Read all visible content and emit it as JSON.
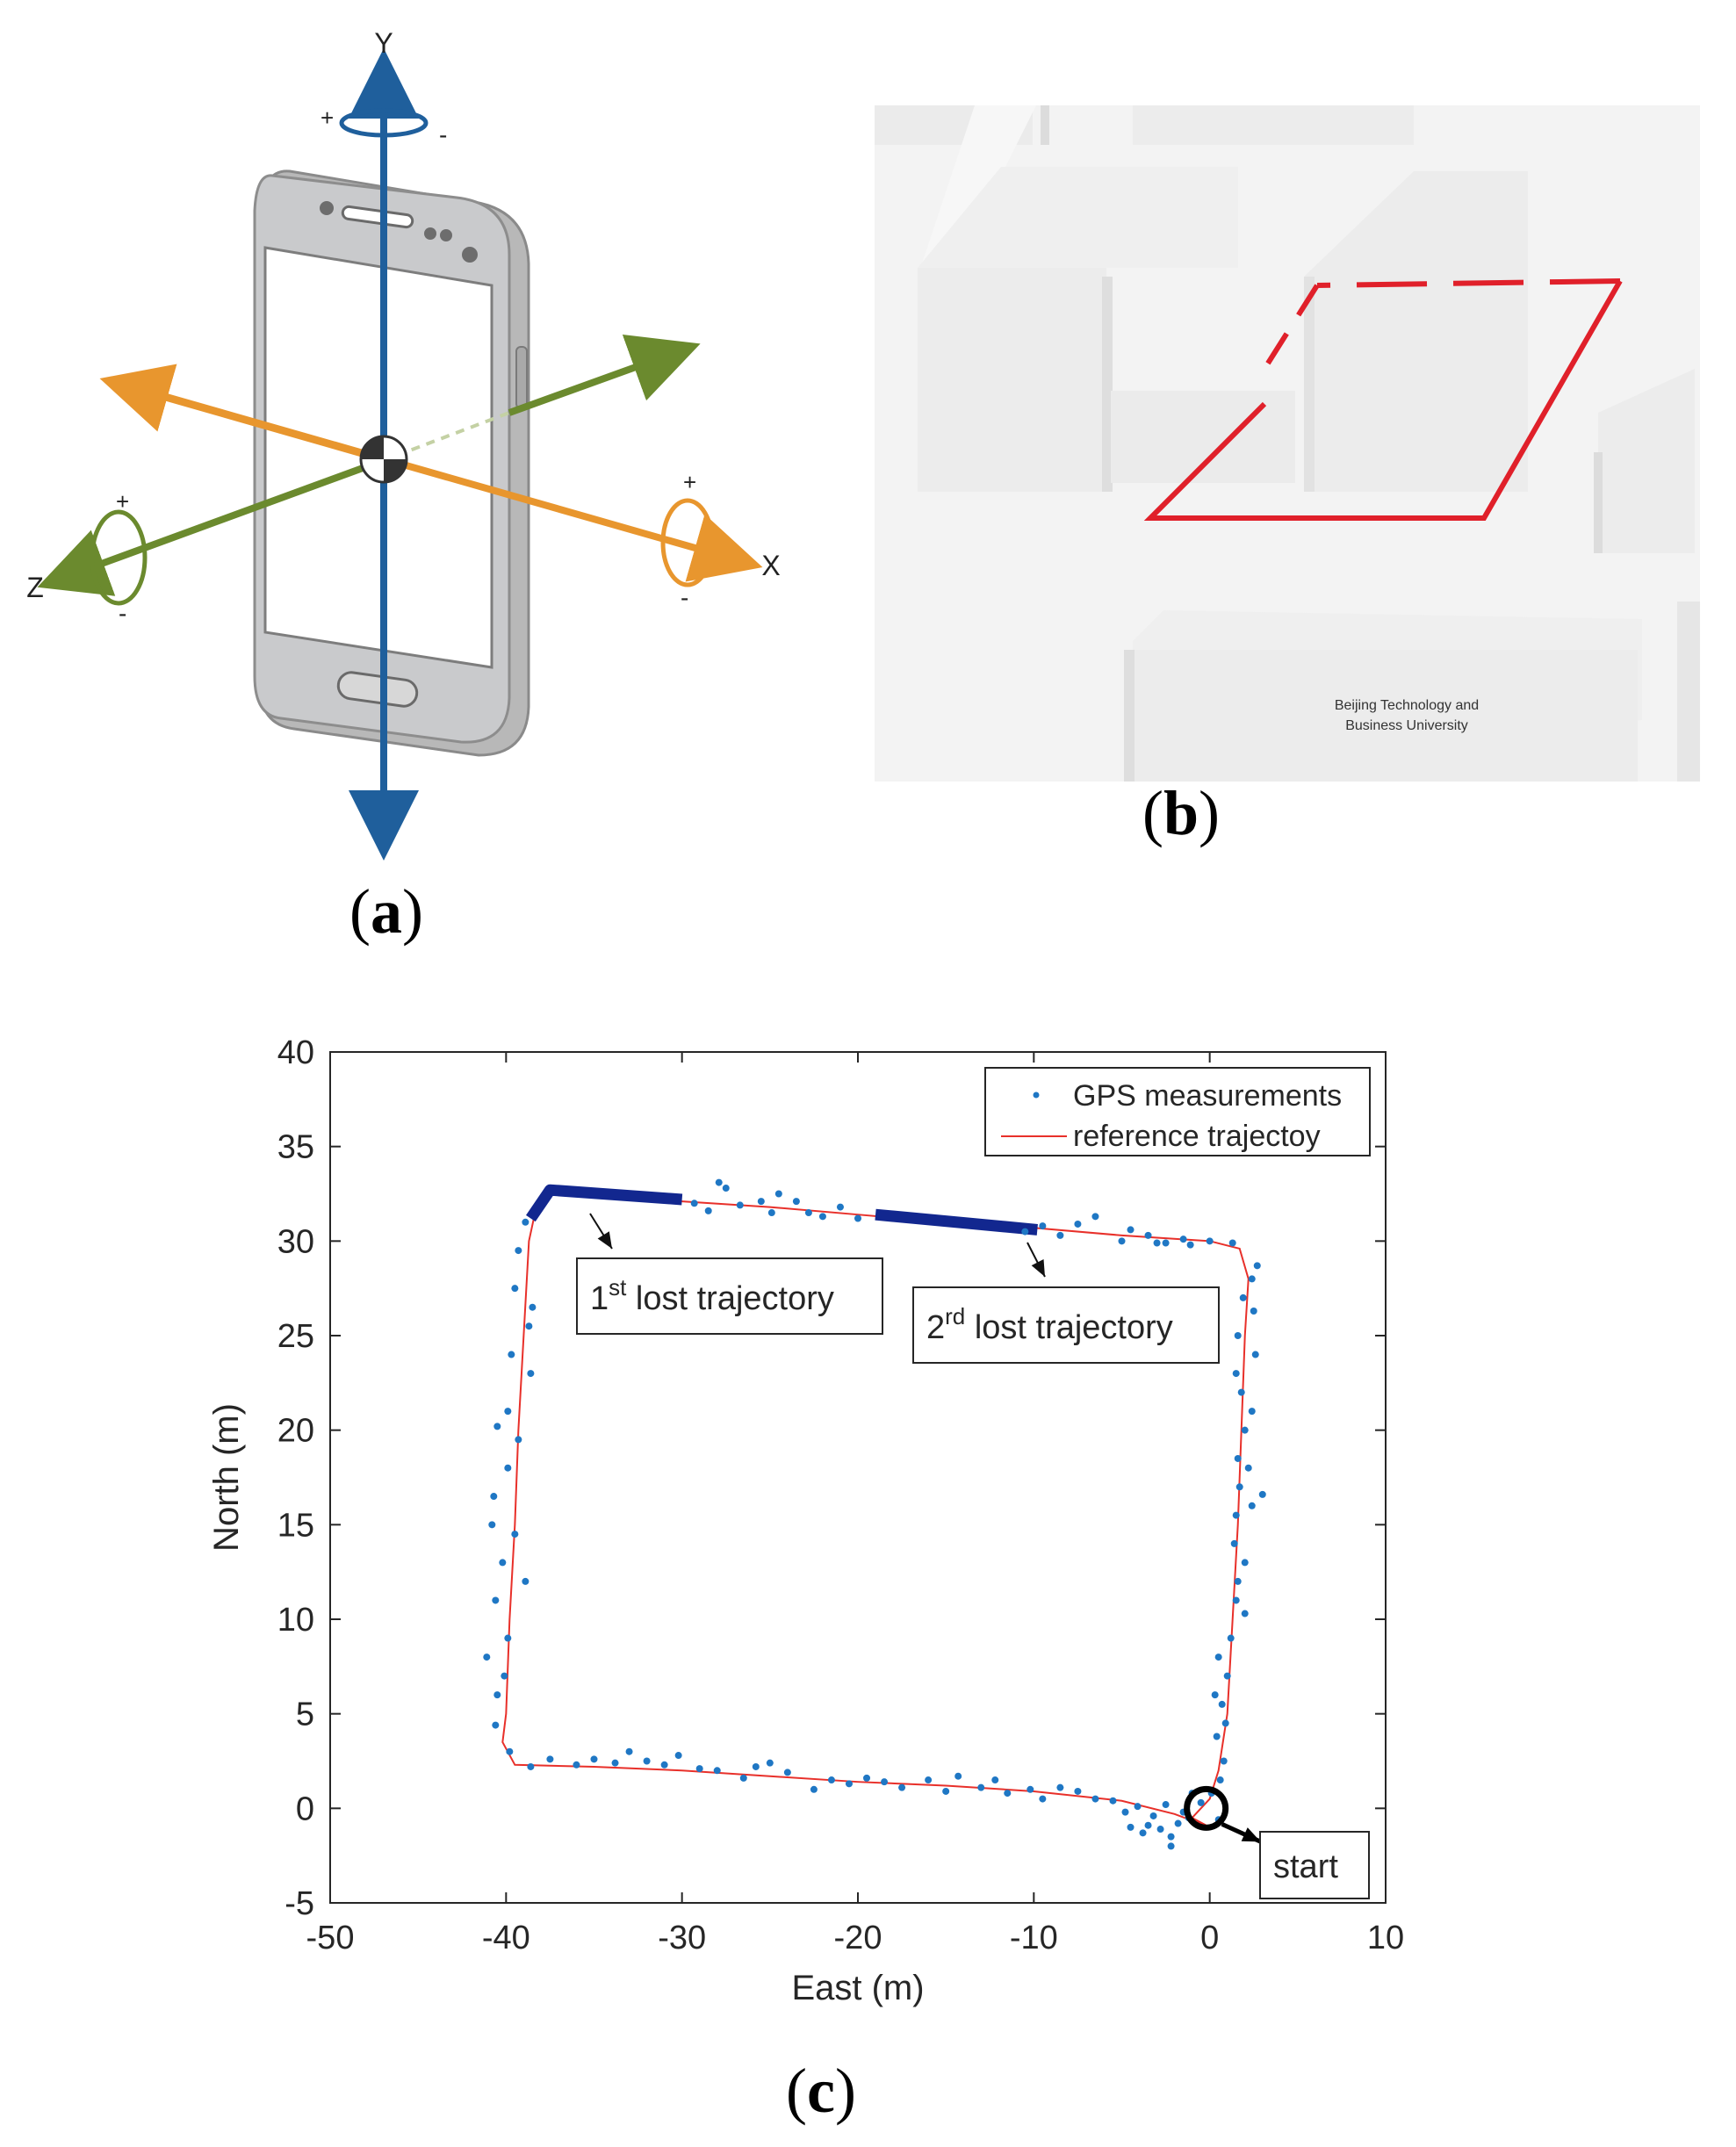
{
  "panel_a": {
    "caption_letter": "a",
    "axes": {
      "y": "Y",
      "x": "X",
      "z": "Z"
    },
    "rotation_signs": {
      "plus": "+",
      "minus": "-"
    },
    "colors": {
      "y_axis": "#1f5f9c",
      "x_axis": "#e8962e",
      "z_axis": "#6b8a2e"
    }
  },
  "panel_b": {
    "caption_letter": "b",
    "building_label_line1": "Beijing Technology and",
    "building_label_line2": "Business University",
    "colors": {
      "route": "#e0202a",
      "ground": "#f3f3f3",
      "building": "#e8e8e8"
    }
  },
  "panel_c": {
    "caption_letter": "c",
    "chart_data": {
      "type": "scatter",
      "xlabel": "East (m)",
      "ylabel": "North (m)",
      "xlim": [
        -50,
        10
      ],
      "ylim": [
        -5,
        40
      ],
      "xticks": [
        -50,
        -40,
        -30,
        -20,
        -10,
        0,
        10
      ],
      "yticks": [
        -5,
        0,
        5,
        10,
        15,
        20,
        25,
        30,
        35,
        40
      ],
      "legend_position": "top-right",
      "series": [
        {
          "name": "GPS measurements",
          "kind": "points",
          "color": "#1f77c4"
        },
        {
          "name": "reference trajectoy",
          "kind": "line",
          "color": "#e8302a",
          "points": [
            [
              0,
              -1
            ],
            [
              -2,
              -0.3
            ],
            [
              -5,
              0.4
            ],
            [
              -10,
              0.9
            ],
            [
              -15,
              1.2
            ],
            [
              -20,
              1.4
            ],
            [
              -25,
              1.7
            ],
            [
              -30,
              2.0
            ],
            [
              -35,
              2.2
            ],
            [
              -39.5,
              2.3
            ],
            [
              -40.2,
              3.5
            ],
            [
              -40,
              5
            ],
            [
              -39.8,
              10
            ],
            [
              -39.5,
              15
            ],
            [
              -39.3,
              20
            ],
            [
              -39,
              25
            ],
            [
              -38.7,
              30
            ],
            [
              -38.4,
              31.3
            ],
            [
              -37.5,
              32.6
            ],
            [
              -35,
              32.4
            ],
            [
              -30,
              32.1
            ],
            [
              -25,
              31.8
            ],
            [
              -20,
              31.4
            ],
            [
              -15,
              31.0
            ],
            [
              -10,
              30.7
            ],
            [
              -5,
              30.3
            ],
            [
              0,
              30
            ],
            [
              1.7,
              29.6
            ],
            [
              2.2,
              28
            ],
            [
              2,
              25
            ],
            [
              1.8,
              20
            ],
            [
              1.6,
              15
            ],
            [
              1.3,
              10
            ],
            [
              1,
              5
            ],
            [
              0.5,
              2
            ],
            [
              0,
              0.5
            ],
            [
              -0.5,
              0
            ],
            [
              -1,
              -0.5
            ],
            [
              0,
              -1
            ]
          ]
        },
        {
          "name": "",
          "kind": "lost",
          "color": "#12278f",
          "segments": [
            [
              [
                -38.6,
                31.2
              ],
              [
                -37.5,
                32.7
              ],
              [
                -30,
                32.2
              ]
            ],
            [
              [
                -19,
                31.4
              ],
              [
                -9.8,
                30.6
              ]
            ]
          ]
        }
      ],
      "gps_points": [
        [
          -38.9,
          31
        ],
        [
          -39.3,
          29.5
        ],
        [
          -39.5,
          27.5
        ],
        [
          -38.5,
          26.5
        ],
        [
          -38.7,
          25.5
        ],
        [
          -39.7,
          24
        ],
        [
          -38.6,
          23
        ],
        [
          -39.9,
          21
        ],
        [
          -39.3,
          19.5
        ],
        [
          -40.5,
          20.2
        ],
        [
          -39.9,
          18
        ],
        [
          -40.7,
          16.5
        ],
        [
          -39.5,
          14.5
        ],
        [
          -40.2,
          13
        ],
        [
          -40.8,
          15
        ],
        [
          -38.9,
          12
        ],
        [
          -40.6,
          11
        ],
        [
          -39.9,
          9
        ],
        [
          -40.1,
          7
        ],
        [
          -41.1,
          8
        ],
        [
          -40.5,
          6
        ],
        [
          -40.6,
          4.4
        ],
        [
          -39.8,
          3
        ],
        [
          -38.6,
          2.2
        ],
        [
          -37.5,
          2.6
        ],
        [
          -36,
          2.3
        ],
        [
          -35,
          2.6
        ],
        [
          -33.8,
          2.4
        ],
        [
          -33,
          3.0
        ],
        [
          -32,
          2.5
        ],
        [
          -31,
          2.3
        ],
        [
          -30.2,
          2.8
        ],
        [
          -29,
          2.1
        ],
        [
          -28,
          2.0
        ],
        [
          -26.5,
          1.6
        ],
        [
          -25.8,
          2.2
        ],
        [
          -25,
          2.4
        ],
        [
          -24,
          1.9
        ],
        [
          -22.5,
          1.0
        ],
        [
          -21.5,
          1.5
        ],
        [
          -20.5,
          1.3
        ],
        [
          -19.5,
          1.6
        ],
        [
          -18.5,
          1.4
        ],
        [
          -17.5,
          1.1
        ],
        [
          -16,
          1.5
        ],
        [
          -15,
          0.9
        ],
        [
          -14.3,
          1.7
        ],
        [
          -13,
          1.1
        ],
        [
          -12.2,
          1.5
        ],
        [
          -11.5,
          0.8
        ],
        [
          -10.2,
          1.0
        ],
        [
          -9.5,
          0.5
        ],
        [
          -8.5,
          1.1
        ],
        [
          -7.5,
          0.9
        ],
        [
          -6.5,
          0.5
        ],
        [
          -5.5,
          0.4
        ],
        [
          -4.8,
          -0.2
        ],
        [
          -4.1,
          0.1
        ],
        [
          -3.5,
          -0.9
        ],
        [
          -3.2,
          -0.4
        ],
        [
          -2.5,
          0.2
        ],
        [
          -2.2,
          -1.5
        ],
        [
          -1.8,
          -0.8
        ],
        [
          -1.5,
          -0.2
        ],
        [
          -1,
          0.8
        ],
        [
          -0.5,
          0.3
        ],
        [
          -4.5,
          -1.0
        ],
        [
          -3.8,
          -1.3
        ],
        [
          -2.8,
          -1.1
        ],
        [
          -2.2,
          -2.0
        ],
        [
          -1.2,
          -0.5
        ],
        [
          0.5,
          -0.6
        ],
        [
          0.1,
          0.8
        ],
        [
          0.6,
          1.5
        ],
        [
          0.8,
          2.5
        ],
        [
          0.4,
          3.8
        ],
        [
          0.9,
          4.5
        ],
        [
          0.7,
          5.5
        ],
        [
          0.3,
          6
        ],
        [
          1,
          7
        ],
        [
          0.5,
          8
        ],
        [
          1.2,
          9
        ],
        [
          1.5,
          11
        ],
        [
          1.6,
          12
        ],
        [
          2,
          13
        ],
        [
          1.4,
          14
        ],
        [
          1.5,
          15.5
        ],
        [
          2.4,
          16
        ],
        [
          1.7,
          17
        ],
        [
          2.2,
          18
        ],
        [
          1.6,
          18.5
        ],
        [
          2.0,
          20
        ],
        [
          2.4,
          21
        ],
        [
          1.8,
          22
        ],
        [
          1.5,
          23
        ],
        [
          2.6,
          24
        ],
        [
          1.6,
          25
        ],
        [
          2.5,
          26.3
        ],
        [
          1.9,
          27
        ],
        [
          2.4,
          28
        ],
        [
          2.7,
          28.7
        ],
        [
          3.0,
          16.6
        ],
        [
          2.0,
          10.3
        ],
        [
          0,
          30
        ],
        [
          -1.5,
          30.1
        ],
        [
          -2.5,
          29.9
        ],
        [
          -3.5,
          30.3
        ],
        [
          -4.5,
          30.6
        ],
        [
          -5,
          30
        ],
        [
          -6.5,
          31.3
        ],
        [
          -7.5,
          30.9
        ],
        [
          -8.5,
          30.3
        ],
        [
          -9.5,
          30.8
        ],
        [
          -10.5,
          30.5
        ],
        [
          -28.5,
          31.6
        ],
        [
          -27.5,
          32.8
        ],
        [
          -26.7,
          31.9
        ],
        [
          -25.5,
          32.1
        ],
        [
          -24.5,
          32.5
        ],
        [
          -23.5,
          32.1
        ],
        [
          -22,
          31.3
        ],
        [
          -21,
          31.8
        ],
        [
          -20,
          31.2
        ],
        [
          -27.9,
          33.1
        ],
        [
          -29.3,
          32.0
        ],
        [
          -24.9,
          31.5
        ],
        [
          -22.8,
          31.5
        ],
        [
          -3,
          29.9
        ],
        [
          -1.1,
          29.8
        ],
        [
          1.3,
          29.9
        ]
      ],
      "annotations": [
        {
          "prefix": "1",
          "sup": "st",
          "text": " lost trajectory"
        },
        {
          "prefix": "2",
          "sup": "rd",
          "text": " lost trajectory"
        },
        {
          "text": "start"
        }
      ]
    }
  }
}
